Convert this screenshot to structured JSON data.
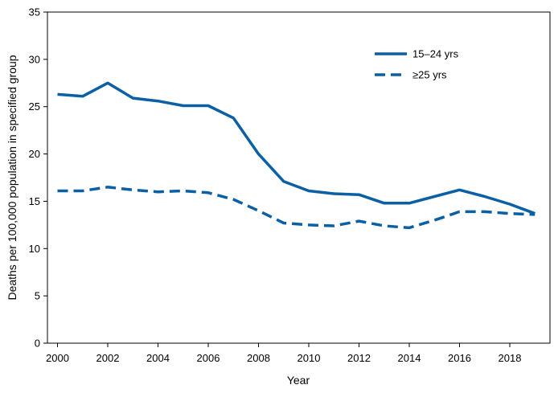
{
  "chart_data": {
    "type": "line",
    "title": "",
    "xlabel": "Year",
    "ylabel": "Deaths per 100,000 population in specified group",
    "x": [
      2000,
      2001,
      2002,
      2003,
      2004,
      2005,
      2006,
      2007,
      2008,
      2009,
      2010,
      2011,
      2012,
      2013,
      2014,
      2015,
      2016,
      2017,
      2018,
      2019
    ],
    "xlim": [
      1999.6,
      2019.6
    ],
    "ylim": [
      0,
      35
    ],
    "x_ticks": [
      2000,
      2002,
      2004,
      2006,
      2008,
      2010,
      2012,
      2014,
      2016,
      2018
    ],
    "x_tick_labels": [
      "2000",
      "2002",
      "2004",
      "2006",
      "2008",
      "2010",
      "2012",
      "2014",
      "2016",
      "2018"
    ],
    "y_ticks": [
      0,
      5,
      10,
      15,
      20,
      25,
      30,
      35
    ],
    "y_tick_labels": [
      "0",
      "5",
      "10",
      "15",
      "20",
      "25",
      "30",
      "35"
    ],
    "grid": false,
    "legend_position": "top-right",
    "series": [
      {
        "name": "15–24 yrs",
        "style": "solid",
        "color": "#0b5fa5",
        "values": [
          26.3,
          26.1,
          27.5,
          25.9,
          25.6,
          25.1,
          25.1,
          23.8,
          20.0,
          17.1,
          16.1,
          15.8,
          15.7,
          14.8,
          14.8,
          15.5,
          16.2,
          15.5,
          14.7,
          13.7
        ]
      },
      {
        "name": "≥25 yrs",
        "style": "dashed",
        "color": "#0b5fa5",
        "values": [
          16.1,
          16.1,
          16.5,
          16.2,
          16.0,
          16.1,
          15.9,
          15.2,
          14.0,
          12.7,
          12.5,
          12.4,
          12.9,
          12.4,
          12.2,
          13.0,
          13.9,
          13.9,
          13.7,
          13.6
        ]
      }
    ]
  }
}
